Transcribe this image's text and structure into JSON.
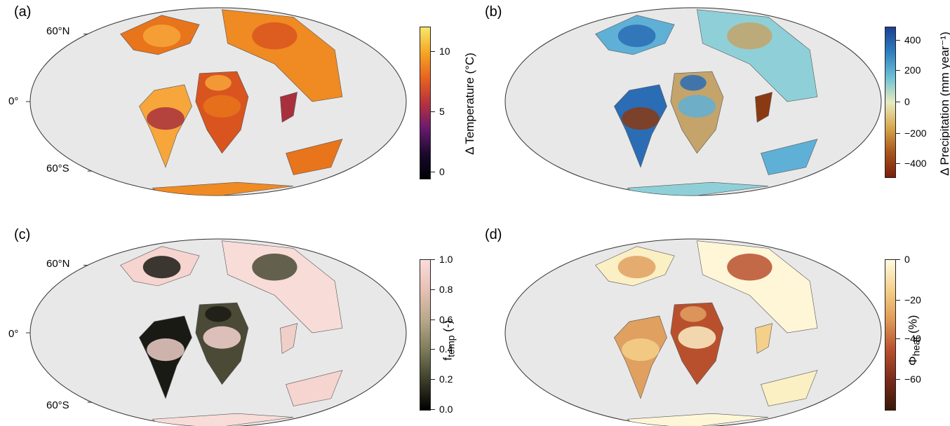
{
  "panels": [
    {
      "id": "a",
      "label": "(a)",
      "lat_labels": [
        "60°N",
        "0°",
        "60°S"
      ],
      "colorbar": {
        "label": "Δ Temperature (°C)",
        "ticks": [
          "10",
          "5",
          "0"
        ],
        "colors": [
          "#f7e86a",
          "#f5a623",
          "#e8641f",
          "#b8323e",
          "#6a1a6e",
          "#1a0a2e",
          "#000004"
        ]
      },
      "land_palette": [
        "#e8741c",
        "#f08a22",
        "#f6a63a",
        "#d9541f",
        "#a8303e"
      ]
    },
    {
      "id": "b",
      "label": "(b)",
      "lat_labels": [],
      "colorbar": {
        "label": "Δ Precipitation (mm year⁻¹)",
        "ticks": [
          "400",
          "200",
          "0",
          "−200",
          "−400"
        ],
        "colors": [
          "#1c3f94",
          "#2e7fc0",
          "#6dc0d6",
          "#e6ebc0",
          "#d8a84c",
          "#a8561c",
          "#7a1e0a"
        ]
      },
      "land_palette": [
        "#5fb0d6",
        "#8fd0d8",
        "#2a6db5",
        "#c4a46a",
        "#8a3a12"
      ]
    },
    {
      "id": "c",
      "label": "(c)",
      "lat_labels": [
        "60°N",
        "0°",
        "60°S"
      ],
      "colorbar": {
        "label": "f",
        "label_sub": "temp",
        "label_tail": " (-)",
        "ticks": [
          "1.0",
          "0.8",
          "0.6",
          "0.4",
          "0.2",
          "0.0"
        ],
        "colors": [
          "#fadcdc",
          "#e8c0b4",
          "#b8a88a",
          "#7c7c5a",
          "#3e3e2a",
          "#000000"
        ]
      },
      "land_palette": [
        "#f6d4d0",
        "#f8dcd8",
        "#1a1a14",
        "#4a4a36",
        "#efcfc8"
      ]
    },
    {
      "id": "d",
      "label": "(d)",
      "lat_labels": [],
      "colorbar": {
        "label": "Φ",
        "label_sub": "heat",
        "label_tail": " (%)",
        "ticks": [
          "0",
          "−20",
          "−40",
          "−60"
        ],
        "colors": [
          "#fffbe0",
          "#f4d08a",
          "#e09a55",
          "#b8502e",
          "#7a2a1a",
          "#3a1808"
        ]
      },
      "land_palette": [
        "#fbefc4",
        "#fff6d8",
        "#e0a060",
        "#b8502e",
        "#f4d08a"
      ]
    }
  ]
}
